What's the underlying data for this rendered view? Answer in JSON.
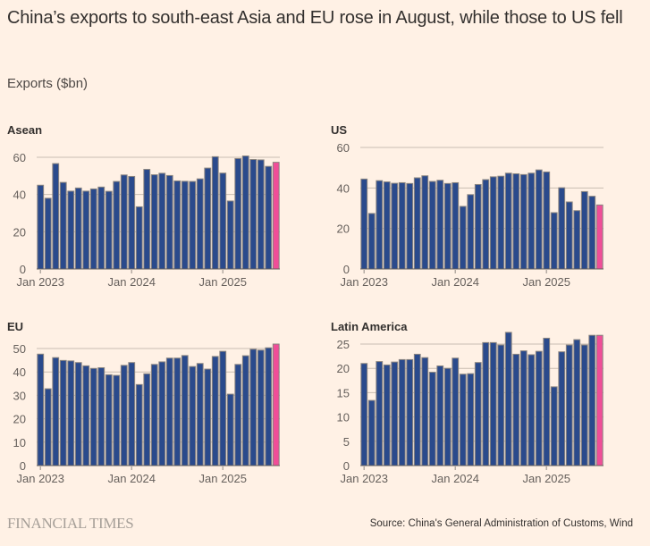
{
  "title": "China’s exports to south-east Asia and EU rose in August, while those to US fell",
  "subtitle": "Exports ($bn)",
  "footer": {
    "logo": "FINANCIAL TIMES",
    "source": "Source: China's General Administration of Customs, Wind"
  },
  "colors": {
    "bar": "#2A4A8C",
    "highlight": "#F04E98",
    "bar_outline": "#8a8580",
    "grid": "#c9bdb2",
    "background": "#FFF1E5"
  },
  "chart_data": [
    {
      "type": "bar",
      "title": "Asean",
      "xlabel": "",
      "ylabel": "Exports ($bn)",
      "ylim": [
        0,
        60
      ],
      "yticks": [
        0,
        20,
        40,
        60
      ],
      "xtick_labels": [
        "Jan 2023",
        "Jan 2024",
        "Jan 2025"
      ],
      "xtick_indices": [
        0,
        12,
        24
      ],
      "highlight_last": true,
      "categories": [
        "2023-01",
        "2023-02",
        "2023-03",
        "2023-04",
        "2023-05",
        "2023-06",
        "2023-07",
        "2023-08",
        "2023-09",
        "2023-10",
        "2023-11",
        "2023-12",
        "2024-01",
        "2024-02",
        "2024-03",
        "2024-04",
        "2024-05",
        "2024-06",
        "2024-07",
        "2024-08",
        "2024-09",
        "2024-10",
        "2024-11",
        "2024-12",
        "2025-01",
        "2025-02",
        "2025-03",
        "2025-04",
        "2025-05",
        "2025-06",
        "2025-07",
        "2025-08"
      ],
      "values": [
        45.0,
        38.0,
        56.6,
        46.5,
        41.8,
        43.5,
        41.8,
        43.0,
        44.0,
        41.7,
        47.0,
        50.5,
        49.7,
        33.4,
        53.5,
        50.6,
        51.4,
        50.2,
        47.3,
        47.1,
        47.0,
        48.4,
        54.2,
        60.3,
        51.5,
        36.5,
        59.3,
        60.7,
        58.8,
        58.6,
        55.1,
        57.3
      ]
    },
    {
      "type": "bar",
      "title": "US",
      "xlabel": "",
      "ylabel": "Exports ($bn)",
      "ylim": [
        0,
        60
      ],
      "yticks": [
        0,
        20,
        40,
        60
      ],
      "xtick_labels": [
        "Jan 2023",
        "Jan 2024",
        "Jan 2025"
      ],
      "xtick_indices": [
        0,
        12,
        24
      ],
      "highlight_last": true,
      "categories": [
        "2023-01",
        "2023-02",
        "2023-03",
        "2023-04",
        "2023-05",
        "2023-06",
        "2023-07",
        "2023-08",
        "2023-09",
        "2023-10",
        "2023-11",
        "2023-12",
        "2024-01",
        "2024-02",
        "2024-03",
        "2024-04",
        "2024-05",
        "2024-06",
        "2024-07",
        "2024-08",
        "2024-09",
        "2024-10",
        "2024-11",
        "2024-12",
        "2025-01",
        "2025-02",
        "2025-03",
        "2025-04",
        "2025-05",
        "2025-06",
        "2025-07",
        "2025-08"
      ],
      "values": [
        44.4,
        27.4,
        43.6,
        43.0,
        42.3,
        42.6,
        42.2,
        45.0,
        46.0,
        43.2,
        43.8,
        42.2,
        42.6,
        30.9,
        36.7,
        41.7,
        44.1,
        45.5,
        45.8,
        47.3,
        47.0,
        46.6,
        47.3,
        48.9,
        47.9,
        27.8,
        40.1,
        33.1,
        28.8,
        38.2,
        35.9,
        31.6
      ]
    },
    {
      "type": "bar",
      "title": "EU",
      "xlabel": "",
      "ylabel": "Exports ($bn)",
      "ylim": [
        0,
        50
      ],
      "yticks": [
        0,
        10,
        20,
        30,
        40,
        50
      ],
      "xtick_labels": [
        "Jan 2023",
        "Jan 2024",
        "Jan 2025"
      ],
      "xtick_indices": [
        0,
        12,
        24
      ],
      "highlight_last": true,
      "categories": [
        "2023-01",
        "2023-02",
        "2023-03",
        "2023-04",
        "2023-05",
        "2023-06",
        "2023-07",
        "2023-08",
        "2023-09",
        "2023-10",
        "2023-11",
        "2023-12",
        "2024-01",
        "2024-02",
        "2024-03",
        "2024-04",
        "2024-05",
        "2024-06",
        "2024-07",
        "2024-08",
        "2024-09",
        "2024-10",
        "2024-11",
        "2024-12",
        "2025-01",
        "2025-02",
        "2025-03",
        "2025-04",
        "2025-05",
        "2025-06",
        "2025-07",
        "2025-08"
      ],
      "values": [
        47.6,
        32.8,
        46.1,
        44.9,
        44.7,
        44.0,
        42.6,
        41.5,
        41.8,
        38.8,
        38.5,
        42.8,
        44.0,
        34.6,
        39.2,
        43.2,
        44.3,
        45.9,
        45.9,
        47.0,
        42.3,
        43.6,
        41.2,
        46.6,
        48.8,
        30.5,
        43.2,
        46.9,
        49.7,
        49.3,
        50.3,
        51.9
      ]
    },
    {
      "type": "bar",
      "title": "Latin America",
      "xlabel": "",
      "ylabel": "Exports ($bn)",
      "ylim": [
        0,
        27.5
      ],
      "yticks": [
        0,
        5,
        10,
        15,
        20,
        25
      ],
      "xtick_labels": [
        "Jan 2023",
        "Jan 2024",
        "Jan 2025"
      ],
      "xtick_indices": [
        0,
        12,
        24
      ],
      "highlight_last": true,
      "categories": [
        "2023-01",
        "2023-02",
        "2023-03",
        "2023-04",
        "2023-05",
        "2023-06",
        "2023-07",
        "2023-08",
        "2023-09",
        "2023-10",
        "2023-11",
        "2023-12",
        "2024-01",
        "2024-02",
        "2024-03",
        "2024-04",
        "2024-05",
        "2024-06",
        "2024-07",
        "2024-08",
        "2024-09",
        "2024-10",
        "2024-11",
        "2024-12",
        "2025-01",
        "2025-02",
        "2025-03",
        "2025-04",
        "2025-05",
        "2025-06",
        "2025-07",
        "2025-08"
      ],
      "values": [
        21.0,
        13.4,
        21.4,
        20.7,
        21.3,
        21.8,
        21.8,
        22.9,
        22.2,
        19.2,
        20.5,
        20.0,
        22.1,
        18.8,
        18.9,
        21.2,
        25.3,
        25.3,
        24.8,
        27.4,
        22.9,
        23.6,
        22.8,
        23.5,
        26.2,
        16.2,
        23.4,
        24.8,
        25.9,
        24.8,
        26.8,
        26.8
      ]
    }
  ]
}
